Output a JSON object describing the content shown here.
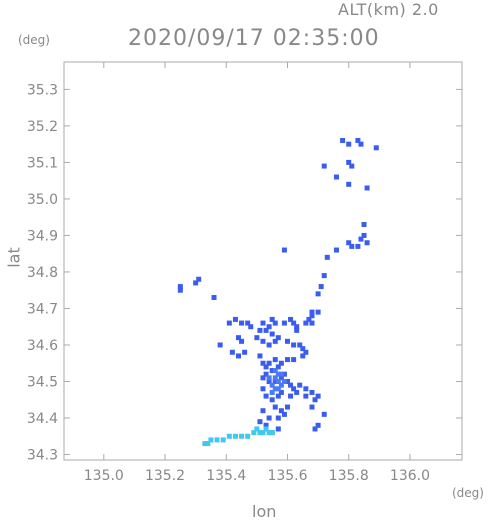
{
  "header": {
    "alt_label": "ALT(km)  2.0",
    "time_label": "2020/09/17 02:35:00"
  },
  "axes": {
    "y_unit": "(deg)",
    "x_unit": "(deg)",
    "y_label": "lat",
    "x_label": "lon"
  },
  "colors": {
    "frame": "#aaaaaa",
    "text": "#888888",
    "echo_primary": "#3a5cf0",
    "echo_secondary": "#4a7af5",
    "echo_light": "#40c8f0"
  },
  "chart_data": {
    "type": "scatter",
    "title": "2020/09/17 02:35:00",
    "subtitle": "ALT(km)  2.0",
    "xlabel": "lon",
    "ylabel": "lat",
    "xlim": [
      134.87,
      136.17
    ],
    "ylim": [
      34.285,
      35.375
    ],
    "xticks": [
      135.0,
      135.2,
      135.4,
      135.6,
      135.8,
      136.0
    ],
    "xtick_labels": [
      "135.0",
      "135.2",
      "135.4",
      "135.6",
      "135.8",
      "136.0"
    ],
    "yticks": [
      34.3,
      34.4,
      34.5,
      34.6,
      34.7,
      34.8,
      34.9,
      35.0,
      35.1,
      35.2,
      35.3
    ],
    "ytick_labels": [
      "34.3",
      "34.4",
      "34.5",
      "34.6",
      "34.7",
      "34.8",
      "34.9",
      "35.0",
      "35.1",
      "35.2",
      "35.3"
    ],
    "grid": false,
    "series": [
      {
        "color": "#3a5cf0",
        "points": [
          [
            135.78,
            35.16
          ],
          [
            135.8,
            35.15
          ],
          [
            135.83,
            35.16
          ],
          [
            135.84,
            35.15
          ],
          [
            135.8,
            35.1
          ],
          [
            135.81,
            35.09
          ],
          [
            135.72,
            35.09
          ],
          [
            135.76,
            35.06
          ],
          [
            135.8,
            35.04
          ],
          [
            135.86,
            35.03
          ],
          [
            135.89,
            35.14
          ],
          [
            135.85,
            34.93
          ],
          [
            135.84,
            34.89
          ],
          [
            135.85,
            34.9
          ],
          [
            135.86,
            34.88
          ],
          [
            135.83,
            34.87
          ],
          [
            135.8,
            34.88
          ],
          [
            135.81,
            34.87
          ],
          [
            135.76,
            34.86
          ],
          [
            135.73,
            34.84
          ],
          [
            135.72,
            34.79
          ],
          [
            135.71,
            34.76
          ],
          [
            135.7,
            34.74
          ],
          [
            135.59,
            34.86
          ],
          [
            135.25,
            34.76
          ],
          [
            135.25,
            34.75
          ],
          [
            135.3,
            34.77
          ],
          [
            135.31,
            34.78
          ],
          [
            135.36,
            34.73
          ],
          [
            135.68,
            34.69
          ],
          [
            135.68,
            34.68
          ],
          [
            135.7,
            34.69
          ],
          [
            135.67,
            34.67
          ],
          [
            135.68,
            34.66
          ],
          [
            135.66,
            34.66
          ],
          [
            135.61,
            34.67
          ],
          [
            135.62,
            34.66
          ],
          [
            135.63,
            34.65
          ],
          [
            135.63,
            34.64
          ],
          [
            135.59,
            34.66
          ],
          [
            135.55,
            34.67
          ],
          [
            135.56,
            34.66
          ],
          [
            135.54,
            34.65
          ],
          [
            135.41,
            34.66
          ],
          [
            135.43,
            34.67
          ],
          [
            135.45,
            34.66
          ],
          [
            135.47,
            34.66
          ],
          [
            135.48,
            34.65
          ],
          [
            135.52,
            34.66
          ],
          [
            135.53,
            34.64
          ],
          [
            135.55,
            34.63
          ],
          [
            135.57,
            34.62
          ],
          [
            135.56,
            34.61
          ],
          [
            135.54,
            34.6
          ],
          [
            135.52,
            34.61
          ],
          [
            135.5,
            34.62
          ],
          [
            135.51,
            34.64
          ],
          [
            135.44,
            34.62
          ],
          [
            135.45,
            34.61
          ],
          [
            135.38,
            34.6
          ],
          [
            135.42,
            34.58
          ],
          [
            135.44,
            34.57
          ],
          [
            135.46,
            34.58
          ],
          [
            135.6,
            34.61
          ],
          [
            135.62,
            34.6
          ],
          [
            135.64,
            34.6
          ],
          [
            135.65,
            34.59
          ],
          [
            135.66,
            34.58
          ],
          [
            135.65,
            34.57
          ],
          [
            135.62,
            34.56
          ],
          [
            135.6,
            34.56
          ],
          [
            135.58,
            34.55
          ],
          [
            135.57,
            34.54
          ],
          [
            135.56,
            34.56
          ],
          [
            135.54,
            34.55
          ],
          [
            135.53,
            34.54
          ],
          [
            135.52,
            34.55
          ],
          [
            135.51,
            34.57
          ],
          [
            135.55,
            34.53
          ],
          [
            135.53,
            34.52
          ],
          [
            135.52,
            34.51
          ],
          [
            135.54,
            34.5
          ],
          [
            135.56,
            34.5
          ],
          [
            135.58,
            34.51
          ],
          [
            135.59,
            34.52
          ],
          [
            135.6,
            34.5
          ],
          [
            135.61,
            34.49
          ],
          [
            135.62,
            34.48
          ],
          [
            135.64,
            34.49
          ],
          [
            135.66,
            34.48
          ],
          [
            135.68,
            34.47
          ],
          [
            135.52,
            34.48
          ],
          [
            135.53,
            34.46
          ],
          [
            135.55,
            34.45
          ],
          [
            135.57,
            34.46
          ],
          [
            135.58,
            34.47
          ],
          [
            135.61,
            34.46
          ],
          [
            135.63,
            34.47
          ],
          [
            135.66,
            34.46
          ],
          [
            135.69,
            34.45
          ],
          [
            135.7,
            34.46
          ],
          [
            135.68,
            34.43
          ],
          [
            135.6,
            34.43
          ],
          [
            135.58,
            34.42
          ],
          [
            135.56,
            34.43
          ],
          [
            135.57,
            34.4
          ],
          [
            135.59,
            34.41
          ],
          [
            135.54,
            34.4
          ],
          [
            135.52,
            34.42
          ],
          [
            135.51,
            34.39
          ],
          [
            135.53,
            34.38
          ],
          [
            135.72,
            34.41
          ],
          [
            135.7,
            34.38
          ],
          [
            135.69,
            34.37
          ],
          [
            135.55,
            34.36
          ],
          [
            135.57,
            34.37
          ]
        ]
      },
      {
        "color": "#4a7af5",
        "points": [
          [
            135.56,
            34.53
          ],
          [
            135.57,
            34.52
          ],
          [
            135.58,
            34.52
          ],
          [
            135.56,
            34.51
          ],
          [
            135.57,
            34.5
          ],
          [
            135.58,
            34.49
          ],
          [
            135.55,
            34.49
          ],
          [
            135.56,
            34.48
          ],
          [
            135.57,
            34.48
          ],
          [
            135.59,
            34.5
          ],
          [
            135.54,
            34.51
          ],
          [
            135.55,
            34.47
          ]
        ]
      },
      {
        "color": "#40c8f0",
        "points": [
          [
            135.33,
            34.33
          ],
          [
            135.34,
            34.33
          ],
          [
            135.35,
            34.34
          ],
          [
            135.37,
            34.34
          ],
          [
            135.39,
            34.34
          ],
          [
            135.41,
            34.35
          ],
          [
            135.43,
            34.35
          ],
          [
            135.45,
            34.35
          ],
          [
            135.47,
            34.35
          ],
          [
            135.49,
            34.36
          ],
          [
            135.51,
            34.36
          ],
          [
            135.52,
            34.36
          ],
          [
            135.54,
            34.36
          ],
          [
            135.55,
            34.36
          ],
          [
            135.53,
            34.37
          ],
          [
            135.5,
            34.37
          ]
        ]
      }
    ]
  }
}
